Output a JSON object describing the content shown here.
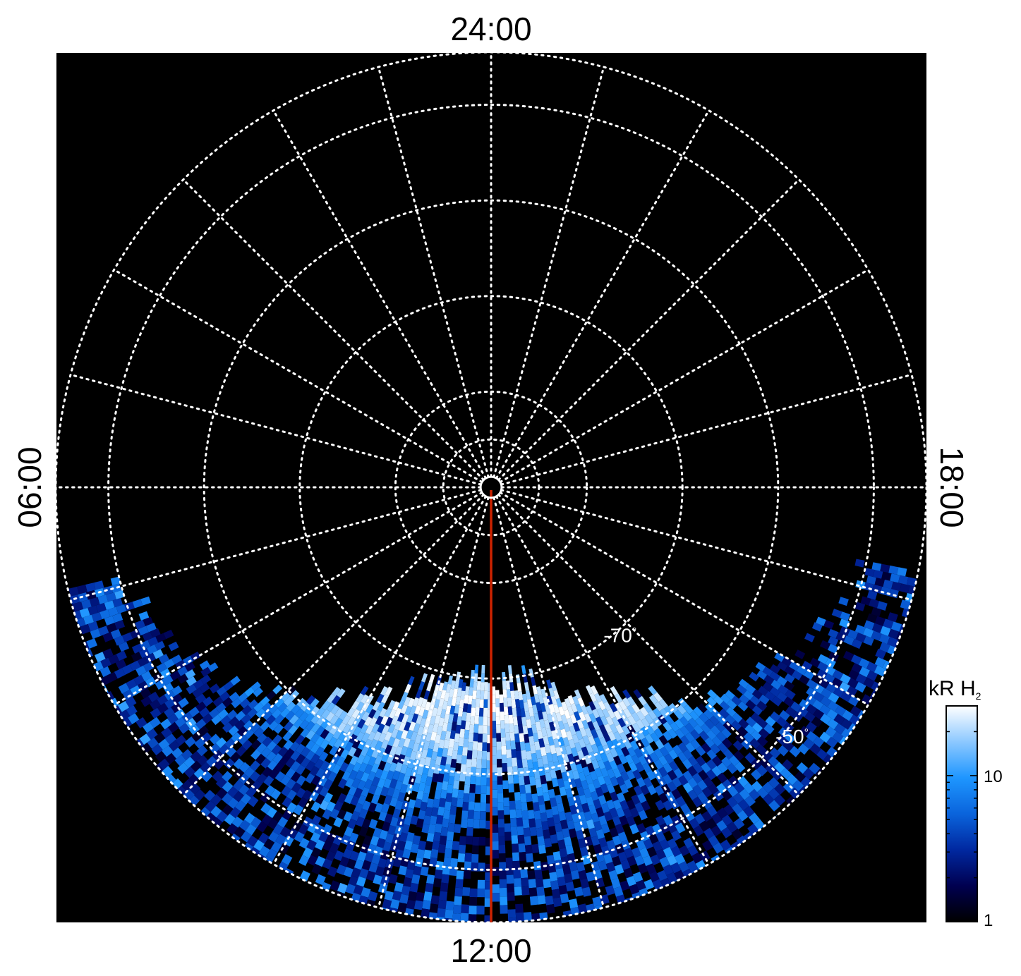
{
  "chart_data": {
    "type": "heatmap",
    "projection": "polar",
    "local_time_labels": {
      "top": "24:00",
      "bottom": "12:00",
      "left": "06:00",
      "right": "18:00"
    },
    "latitude_labels": [
      {
        "text": "-70",
        "degree": "°",
        "colatitude": 20,
        "local_time_hours": 14.4
      },
      {
        "text": "-50",
        "degree": "°",
        "colatitude": 40,
        "local_time_hours": 15.2
      }
    ],
    "grid": {
      "colatitude_rings_deg": [
        1,
        5,
        10,
        20,
        30,
        40,
        45.5
      ],
      "meridian_step_hours": 1,
      "style": "dotted",
      "color": "#ffffff"
    },
    "colatitude_max": 45.5,
    "meridian_line": {
      "local_time_hours": 12,
      "colatitude_range": [
        0,
        45.5
      ],
      "color": "#cc2200"
    },
    "coverage": {
      "colatitude_min_at_sides": 40,
      "colatitude_min_at_noon": 20
    },
    "emission_bands": [
      {
        "name": "main_oval",
        "colatitude_center": 26,
        "width": 5,
        "peak_kR": 20
      },
      {
        "name": "secondary_arc",
        "colatitude_center": 21,
        "width": 3,
        "peak_kR": 18
      }
    ],
    "colorbar": {
      "title": "kR H",
      "subscript": "2",
      "scale": "log",
      "range": [
        1,
        30
      ],
      "tick_labels": [
        {
          "text": "10",
          "value": 10
        },
        {
          "text": "1",
          "value": 1
        }
      ],
      "colors": [
        "#000000",
        "#000050",
        "#0028a0",
        "#0a64dc",
        "#1e96ff",
        "#8cc8ff",
        "#ffffff"
      ]
    },
    "background": "#000000"
  }
}
